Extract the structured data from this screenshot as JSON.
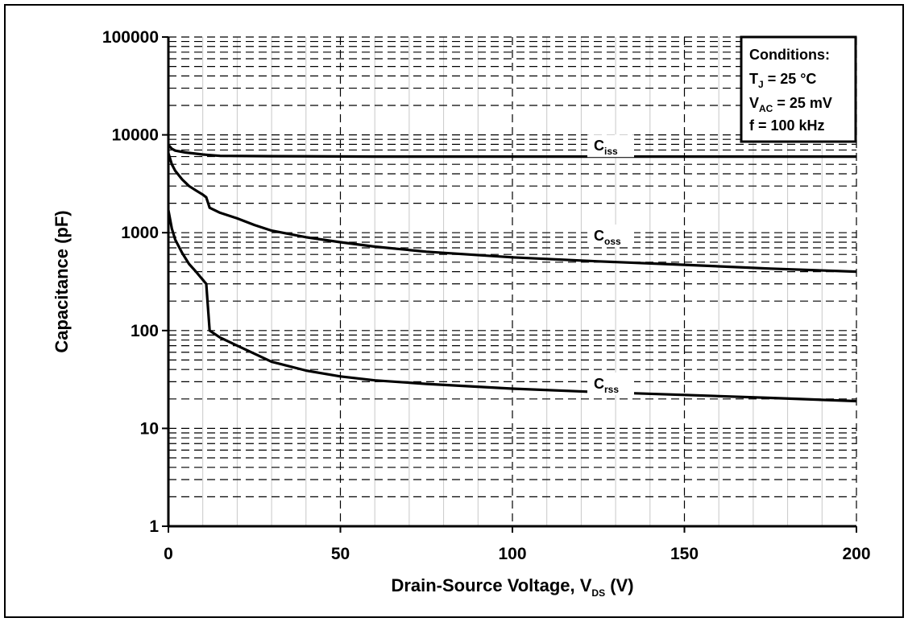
{
  "chart_data": {
    "type": "line",
    "xlabel": {
      "main": "Drain-Source Voltage, V",
      "sub": "DS",
      "tail": " (V)"
    },
    "ylabel": "Capacitance (pF)",
    "xlim": [
      0,
      200
    ],
    "ylim": [
      1,
      100000
    ],
    "y_scale": "log",
    "grid": true,
    "x_ticks": [
      0,
      50,
      100,
      150,
      200
    ],
    "x_tick_labels": [
      "0",
      "50",
      "100",
      "150",
      "200"
    ],
    "y_ticks": [
      1,
      10,
      100,
      1000,
      10000,
      100000
    ],
    "y_tick_labels": [
      "1",
      "10",
      "100",
      "1000",
      "10000",
      "100000"
    ],
    "series": [
      {
        "name": "Ciss",
        "label_main": "C",
        "label_sub": "iss",
        "label_at": [
          126,
          6900
        ],
        "points": [
          [
            0,
            7900
          ],
          [
            1,
            7200
          ],
          [
            2,
            6900
          ],
          [
            5,
            6600
          ],
          [
            10,
            6300
          ],
          [
            15,
            6100
          ],
          [
            30,
            6050
          ],
          [
            60,
            6000
          ],
          [
            100,
            6000
          ],
          [
            150,
            6000
          ],
          [
            200,
            6000
          ]
        ]
      },
      {
        "name": "Coss",
        "label_main": "C",
        "label_sub": "oss",
        "label_at": [
          126,
          830
        ],
        "points": [
          [
            0,
            6500
          ],
          [
            1,
            5000
          ],
          [
            2,
            4300
          ],
          [
            4,
            3500
          ],
          [
            6,
            3000
          ],
          [
            8,
            2700
          ],
          [
            10,
            2450
          ],
          [
            11,
            2300
          ],
          [
            12,
            1800
          ],
          [
            15,
            1600
          ],
          [
            20,
            1400
          ],
          [
            25,
            1200
          ],
          [
            30,
            1050
          ],
          [
            40,
            900
          ],
          [
            50,
            800
          ],
          [
            60,
            720
          ],
          [
            75,
            640
          ],
          [
            100,
            560
          ],
          [
            125,
            510
          ],
          [
            150,
            470
          ],
          [
            175,
            430
          ],
          [
            200,
            400
          ]
        ]
      },
      {
        "name": "Crss",
        "label_main": "C",
        "label_sub": "rss",
        "label_at": [
          126,
          25.5
        ],
        "points": [
          [
            0,
            1700
          ],
          [
            1,
            1100
          ],
          [
            2,
            850
          ],
          [
            4,
            620
          ],
          [
            6,
            480
          ],
          [
            8,
            400
          ],
          [
            10,
            330
          ],
          [
            11,
            300
          ],
          [
            12,
            100
          ],
          [
            15,
            85
          ],
          [
            20,
            70
          ],
          [
            25,
            58
          ],
          [
            30,
            48
          ],
          [
            40,
            39
          ],
          [
            50,
            34
          ],
          [
            60,
            31
          ],
          [
            75,
            28.5
          ],
          [
            100,
            25.5
          ],
          [
            125,
            23.5
          ],
          [
            150,
            22
          ],
          [
            175,
            20.5
          ],
          [
            200,
            19
          ]
        ]
      }
    ],
    "conditions": {
      "title": "Conditions:",
      "tj": {
        "main": "T",
        "sub": "J",
        "tail": " = 25 °C"
      },
      "vac": {
        "main": "V",
        "sub": "AC",
        "tail": " = 25 mV"
      },
      "freq": "f = 100 kHz"
    },
    "legend_placement": "top-right"
  }
}
